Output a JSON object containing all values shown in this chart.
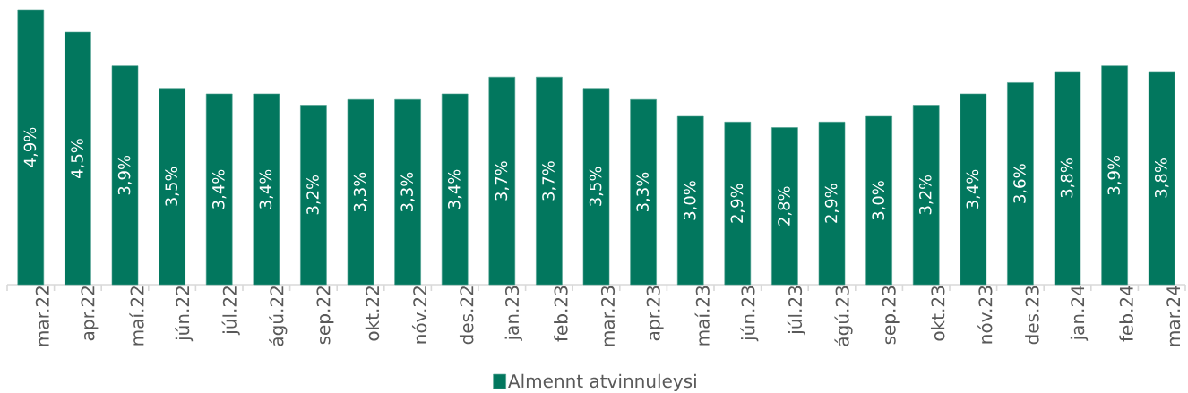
{
  "chart_data": {
    "type": "bar",
    "categories": [
      "mar.22",
      "apr.22",
      "maí.22",
      "jún.22",
      "júl.22",
      "ágú.22",
      "sep.22",
      "okt.22",
      "nóv.22",
      "des.22",
      "jan.23",
      "feb.23",
      "mar.23",
      "apr.23",
      "maí.23",
      "jún.23",
      "júl.23",
      "ágú.23",
      "sep.23",
      "okt.23",
      "nóv.23",
      "des.23",
      "jan.24",
      "feb.24",
      "mar.24"
    ],
    "series": [
      {
        "name": "Almennt atvinnuleysi",
        "color": "#02775e",
        "values": [
          4.9,
          4.5,
          3.9,
          3.5,
          3.4,
          3.4,
          3.2,
          3.3,
          3.3,
          3.4,
          3.7,
          3.7,
          3.5,
          3.3,
          3.0,
          2.9,
          2.8,
          2.9,
          3.0,
          3.2,
          3.4,
          3.6,
          3.8,
          3.9,
          3.8
        ],
        "value_labels": [
          "4,9%",
          "4,5%",
          "3,9%",
          "3,5%",
          "3,4%",
          "3,4%",
          "3,2%",
          "3,3%",
          "3,3%",
          "3,4%",
          "3,7%",
          "3,7%",
          "3,5%",
          "3,3%",
          "3,0%",
          "2,9%",
          "2,8%",
          "2,9%",
          "3,0%",
          "3,2%",
          "3,4%",
          "3,6%",
          "3,8%",
          "3,9%",
          "3,8%"
        ]
      }
    ],
    "legend": "bottom"
  }
}
